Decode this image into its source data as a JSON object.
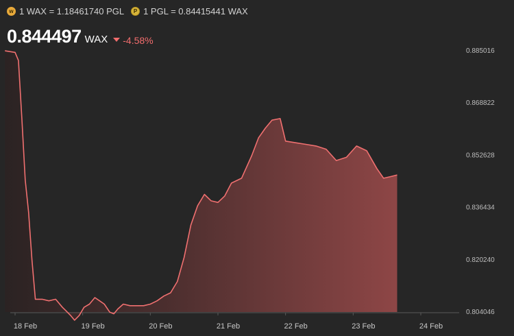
{
  "header": {
    "rate_wax": "1 WAX = 1.18461740 PGL",
    "rate_pgl": "1 PGL = 0.84415441 WAX",
    "price": "0.844497",
    "unit": "WAX",
    "change": "-4.58%"
  },
  "colors": {
    "background": "#262626",
    "line": "#f07070",
    "change_negative": "#f26d6d"
  },
  "icons": {
    "wax_coin": "wax-coin-icon",
    "pgl_coin": "pgl-coin-icon",
    "change_direction": "triangle-down-icon"
  },
  "chart_data": {
    "type": "area",
    "title": "",
    "xlabel": "",
    "ylabel": "",
    "x_ticks": [
      "18 Feb",
      "19 Feb",
      "20 Feb",
      "21 Feb",
      "22 Feb",
      "23 Feb",
      "24 Feb"
    ],
    "y_ticks": [
      "0.885016",
      "0.868822",
      "0.852628",
      "0.836434",
      "0.820240",
      "0.804046"
    ],
    "ylim": [
      0.804046,
      0.885016
    ],
    "xlim": [
      -0.15,
      6.6
    ],
    "grid": false,
    "series": [
      {
        "values": [
          [
            -0.15,
            0.885
          ],
          [
            0.0,
            0.8845
          ],
          [
            0.05,
            0.882
          ],
          [
            0.1,
            0.864
          ],
          [
            0.15,
            0.845
          ],
          [
            0.2,
            0.835
          ],
          [
            0.25,
            0.82
          ],
          [
            0.3,
            0.808
          ],
          [
            0.4,
            0.808
          ],
          [
            0.5,
            0.8075
          ],
          [
            0.6,
            0.808
          ],
          [
            0.7,
            0.8055
          ],
          [
            0.75,
            0.8045
          ],
          [
            0.82,
            0.803
          ],
          [
            0.88,
            0.8015
          ],
          [
            0.95,
            0.803
          ],
          [
            1.02,
            0.8055
          ],
          [
            1.1,
            0.8065
          ],
          [
            1.18,
            0.8085
          ],
          [
            1.25,
            0.8075
          ],
          [
            1.32,
            0.8065
          ],
          [
            1.4,
            0.804
          ],
          [
            1.46,
            0.8035
          ],
          [
            1.52,
            0.805
          ],
          [
            1.6,
            0.8065
          ],
          [
            1.7,
            0.806
          ],
          [
            1.8,
            0.806
          ],
          [
            1.9,
            0.806
          ],
          [
            2.0,
            0.8065
          ],
          [
            2.1,
            0.8075
          ],
          [
            2.2,
            0.809
          ],
          [
            2.3,
            0.81
          ],
          [
            2.4,
            0.8135
          ],
          [
            2.5,
            0.821
          ],
          [
            2.6,
            0.831
          ],
          [
            2.7,
            0.837
          ],
          [
            2.8,
            0.8405
          ],
          [
            2.9,
            0.8385
          ],
          [
            3.0,
            0.838
          ],
          [
            3.1,
            0.84
          ],
          [
            3.2,
            0.844
          ],
          [
            3.35,
            0.8455
          ],
          [
            3.5,
            0.8525
          ],
          [
            3.6,
            0.858
          ],
          [
            3.7,
            0.861
          ],
          [
            3.8,
            0.8635
          ],
          [
            3.92,
            0.864
          ],
          [
            4.0,
            0.857
          ],
          [
            4.15,
            0.8565
          ],
          [
            4.3,
            0.856
          ],
          [
            4.45,
            0.8555
          ],
          [
            4.6,
            0.8545
          ],
          [
            4.75,
            0.851
          ],
          [
            4.9,
            0.852
          ],
          [
            5.05,
            0.8555
          ],
          [
            5.2,
            0.854
          ],
          [
            5.35,
            0.8485
          ],
          [
            5.45,
            0.8455
          ],
          [
            5.55,
            0.846
          ],
          [
            5.65,
            0.8465
          ]
        ]
      }
    ]
  }
}
